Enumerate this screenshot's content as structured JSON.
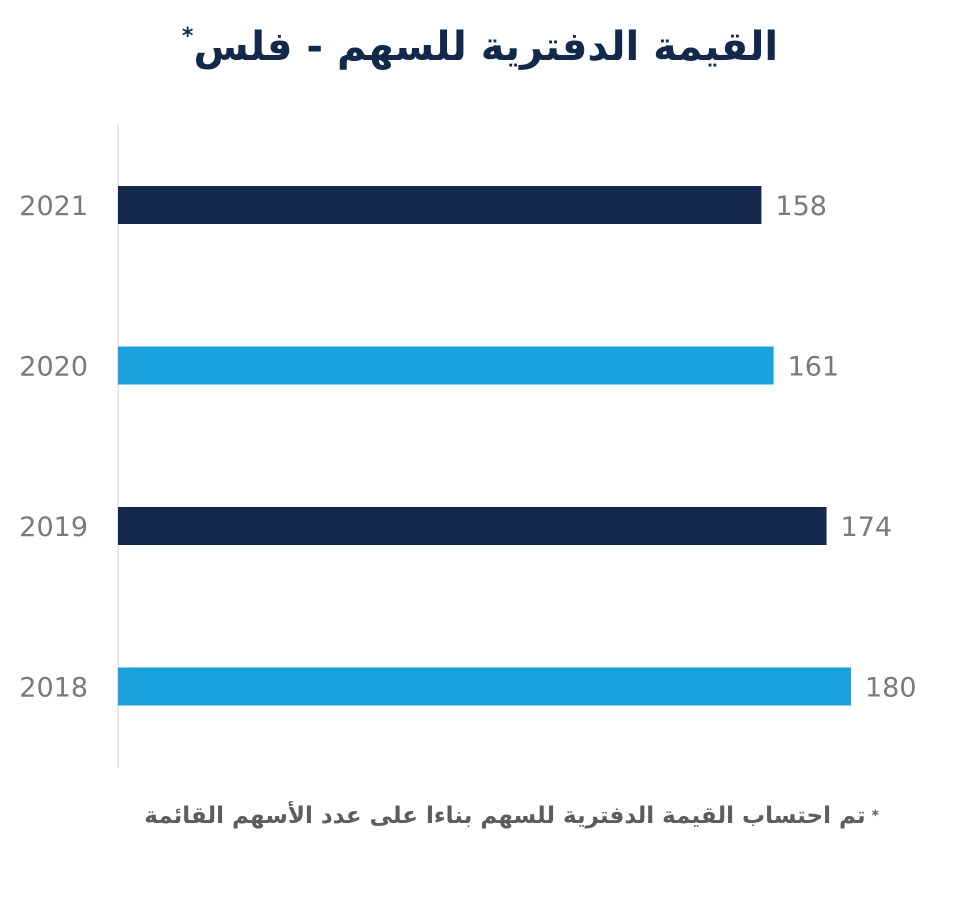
{
  "chart_data": {
    "type": "bar",
    "orientation": "horizontal",
    "title": "القيمة الدفترية للسهم - فلس",
    "title_marker": "*",
    "categories": [
      "2021",
      "2020",
      "2019",
      "2018"
    ],
    "values": [
      158,
      161,
      174,
      180
    ],
    "xlim": [
      0,
      180
    ],
    "colors": [
      "#13294b",
      "#19a2dc",
      "#13294b",
      "#19a2dc"
    ],
    "grid": false,
    "footnote_marker": "*",
    "footnote": "تم احتساب القيمة الدفترية للسهم بناءا على عدد الأسهم القائمة"
  },
  "colors": {
    "dark_navy": "#13294b",
    "light_blue": "#19a2dc",
    "label_gray": "#7a7a7a",
    "axis_line": "#e0e0e0"
  }
}
